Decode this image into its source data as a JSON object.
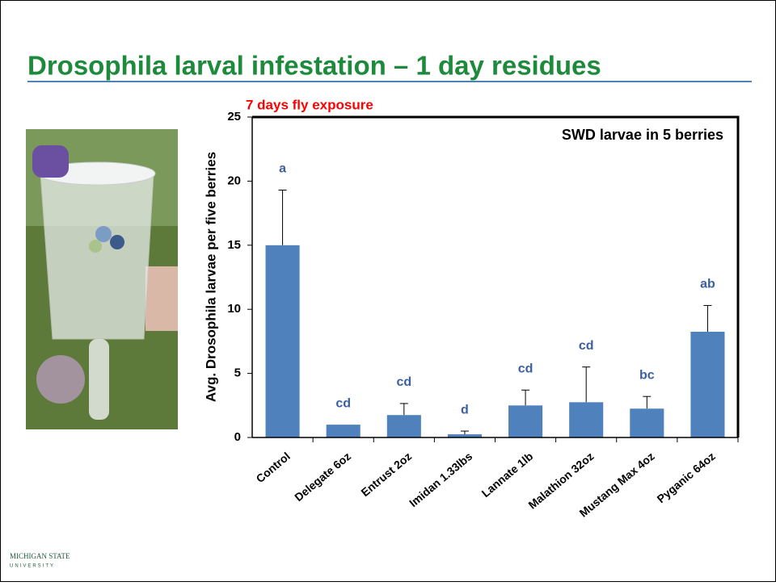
{
  "title": "Drosophila larval infestation – 1 day residues",
  "logo": {
    "line1": "MICHIGAN STATE",
    "line2": "UNIVERSITY"
  },
  "chart_data": {
    "type": "bar",
    "subtitle": "7 days fly exposure",
    "annotation": "SWD larvae in 5 berries",
    "y_label": "Avg.  Drosophila larvae per five berries",
    "categories": [
      "Control",
      "Delegate 6oz",
      "Entrust 2oz",
      "Imidan 1.33lbs",
      "Lannate 1lb",
      "Malathion 32oz",
      "Mustang Max 4oz",
      "Pyganic 64oz"
    ],
    "values": [
      15,
      1,
      1.75,
      0.25,
      2.5,
      2.75,
      2.25,
      8.25
    ],
    "error": [
      4.3,
      0,
      0.9,
      0.25,
      1.2,
      2.75,
      0.95,
      2.05
    ],
    "letters": [
      "a",
      "cd",
      "cd",
      "d",
      "cd",
      "cd",
      "bc",
      "ab"
    ],
    "color": "#4f81bd",
    "ylim": [
      0,
      25
    ],
    "yticks": [
      0,
      5,
      10,
      15,
      20,
      25
    ]
  }
}
